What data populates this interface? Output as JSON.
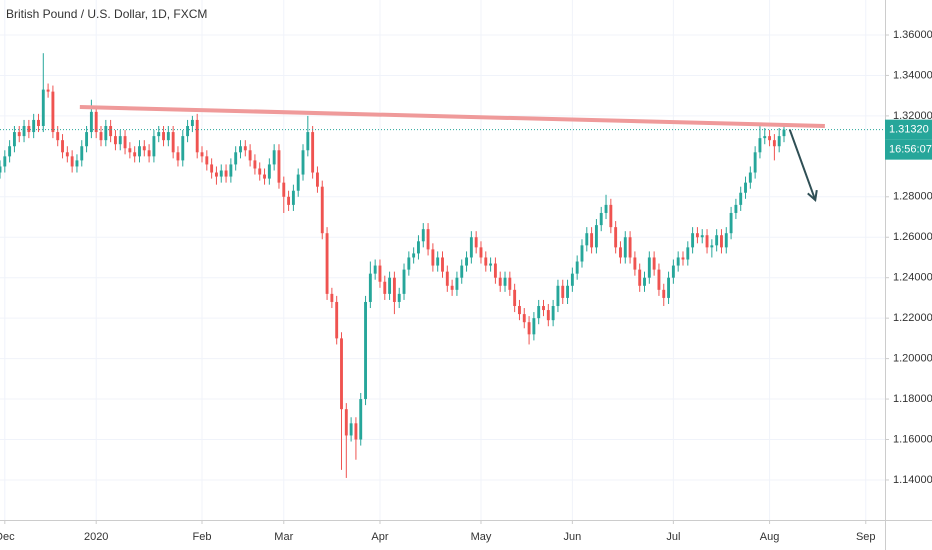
{
  "chart_data": {
    "type": "candlestick",
    "title": "British Pound / U.S. Dollar, 1D, FXCM",
    "up_color": "#26a69a",
    "down_color": "#ef5350",
    "xlim": [
      0,
      184
    ],
    "ylim": [
      1.1202,
      1.3773
    ],
    "xticks": [
      {
        "value": 1,
        "label": "Dec"
      },
      {
        "value": 20,
        "label": "2020"
      },
      {
        "value": 42,
        "label": "Feb"
      },
      {
        "value": 59,
        "label": "Mar"
      },
      {
        "value": 79,
        "label": "Apr"
      },
      {
        "value": 100,
        "label": "May"
      },
      {
        "value": 119,
        "label": "Jun"
      },
      {
        "value": 140,
        "label": "Jul"
      },
      {
        "value": 160,
        "label": "Aug"
      },
      {
        "value": 180,
        "label": "Sep"
      }
    ],
    "yticks": [
      {
        "value": 1.14,
        "label": "1.14000"
      },
      {
        "value": 1.16,
        "label": "1.16000"
      },
      {
        "value": 1.18,
        "label": "1.18000"
      },
      {
        "value": 1.2,
        "label": "1.20000"
      },
      {
        "value": 1.22,
        "label": "1.22000"
      },
      {
        "value": 1.24,
        "label": "1.24000"
      },
      {
        "value": 1.26,
        "label": "1.26000"
      },
      {
        "value": 1.28,
        "label": "1.28000"
      },
      {
        "value": 1.32,
        "label": "1.32000"
      },
      {
        "value": 1.34,
        "label": "1.34000"
      },
      {
        "value": 1.36,
        "label": "1.36000"
      }
    ],
    "last_price": {
      "value": 1.3132,
      "label": "1.31320"
    },
    "countdown": "16:56:07",
    "trendline": {
      "x": [
        16.6,
        171.5
      ],
      "y": [
        1.3244,
        1.315
      ],
      "color": "#ef9a9a"
    },
    "arrow": {
      "x": [
        164.2,
        169.5
      ],
      "y": [
        1.3132,
        1.2784
      ],
      "color": "#2f4f55"
    },
    "open": [
      1.292,
      1.295,
      1.3,
      1.305,
      1.312,
      1.31,
      1.315,
      1.312,
      1.318,
      1.315,
      1.333,
      1.332,
      1.312,
      1.308,
      1.302,
      1.3,
      1.295,
      1.298,
      1.305,
      1.312,
      1.322,
      1.312,
      1.308,
      1.315,
      1.31,
      1.306,
      1.31,
      1.304,
      1.302,
      1.3,
      1.305,
      1.303,
      1.3,
      1.31,
      1.312,
      1.308,
      1.312,
      1.302,
      1.298,
      1.31,
      1.315,
      1.318,
      1.302,
      1.3,
      1.296,
      1.292,
      1.29,
      1.293,
      1.29,
      1.296,
      1.302,
      1.305,
      1.303,
      1.298,
      1.294,
      1.291,
      1.289,
      1.296,
      1.303,
      1.287,
      1.28,
      1.276,
      1.283,
      1.291,
      1.303,
      1.312,
      1.292,
      1.285,
      1.262,
      1.232,
      1.228,
      1.21,
      1.175,
      1.162,
      1.168,
      1.16,
      1.18,
      1.228,
      1.242,
      1.246,
      1.238,
      1.232,
      1.24,
      1.228,
      1.232,
      1.244,
      1.25,
      1.252,
      1.258,
      1.264,
      1.254,
      1.246,
      1.25,
      1.243,
      1.236,
      1.234,
      1.24,
      1.246,
      1.25,
      1.26,
      1.255,
      1.25,
      1.246,
      1.247,
      1.24,
      1.236,
      1.24,
      1.234,
      1.226,
      1.222,
      1.218,
      1.212,
      1.22,
      1.226,
      1.224,
      1.219,
      1.226,
      1.236,
      1.23,
      1.236,
      1.242,
      1.248,
      1.256,
      1.262,
      1.255,
      1.266,
      1.272,
      1.276,
      1.265,
      1.255,
      1.25,
      1.26,
      1.25,
      1.244,
      1.236,
      1.24,
      1.25,
      1.244,
      1.234,
      1.23,
      1.24,
      1.246,
      1.25,
      1.249,
      1.255,
      1.262,
      1.26,
      1.261,
      1.255,
      1.256,
      1.261,
      1.255,
      1.262,
      1.272,
      1.276,
      1.282,
      1.287,
      1.292,
      1.302,
      1.309,
      1.31,
      1.308,
      1.305,
      1.31
    ],
    "high": [
      1.298,
      1.303,
      1.308,
      1.315,
      1.315,
      1.318,
      1.318,
      1.321,
      1.321,
      1.351,
      1.336,
      1.335,
      1.315,
      1.311,
      1.305,
      1.303,
      1.301,
      1.308,
      1.315,
      1.328,
      1.325,
      1.315,
      1.318,
      1.318,
      1.313,
      1.313,
      1.313,
      1.307,
      1.305,
      1.308,
      1.308,
      1.306,
      1.313,
      1.315,
      1.315,
      1.315,
      1.315,
      1.305,
      1.313,
      1.318,
      1.32,
      1.321,
      1.305,
      1.303,
      1.299,
      1.295,
      1.296,
      1.296,
      1.299,
      1.305,
      1.308,
      1.308,
      1.306,
      1.301,
      1.297,
      1.294,
      1.299,
      1.306,
      1.306,
      1.29,
      1.283,
      1.286,
      1.294,
      1.306,
      1.32,
      1.315,
      1.295,
      1.288,
      1.265,
      1.235,
      1.231,
      1.213,
      1.178,
      1.171,
      1.171,
      1.183,
      1.231,
      1.248,
      1.249,
      1.249,
      1.241,
      1.243,
      1.243,
      1.235,
      1.247,
      1.253,
      1.255,
      1.261,
      1.267,
      1.267,
      1.257,
      1.253,
      1.253,
      1.246,
      1.239,
      1.243,
      1.249,
      1.253,
      1.263,
      1.263,
      1.258,
      1.253,
      1.25,
      1.25,
      1.243,
      1.243,
      1.243,
      1.237,
      1.229,
      1.225,
      1.221,
      1.223,
      1.229,
      1.229,
      1.227,
      1.229,
      1.239,
      1.239,
      1.239,
      1.245,
      1.251,
      1.259,
      1.265,
      1.265,
      1.269,
      1.275,
      1.281,
      1.279,
      1.268,
      1.258,
      1.263,
      1.263,
      1.253,
      1.247,
      1.243,
      1.253,
      1.253,
      1.247,
      1.237,
      1.243,
      1.249,
      1.253,
      1.253,
      1.258,
      1.265,
      1.265,
      1.264,
      1.264,
      1.259,
      1.264,
      1.264,
      1.265,
      1.275,
      1.279,
      1.285,
      1.29,
      1.295,
      1.305,
      1.316,
      1.314,
      1.313,
      1.311,
      1.314,
      1.316
    ],
    "low": [
      1.289,
      1.292,
      1.297,
      1.302,
      1.307,
      1.307,
      1.309,
      1.309,
      1.312,
      1.312,
      1.329,
      1.309,
      1.305,
      1.299,
      1.297,
      1.292,
      1.292,
      1.295,
      1.302,
      1.309,
      1.309,
      1.305,
      1.305,
      1.307,
      1.303,
      1.303,
      1.301,
      1.299,
      1.297,
      1.297,
      1.3,
      1.297,
      1.297,
      1.307,
      1.305,
      1.305,
      1.299,
      1.295,
      1.295,
      1.307,
      1.312,
      1.299,
      1.297,
      1.293,
      1.289,
      1.286,
      1.287,
      1.287,
      1.287,
      1.293,
      1.299,
      1.3,
      1.295,
      1.291,
      1.288,
      1.286,
      1.286,
      1.293,
      1.284,
      1.272,
      1.273,
      1.273,
      1.28,
      1.288,
      1.3,
      1.289,
      1.282,
      1.259,
      1.229,
      1.225,
      1.207,
      1.145,
      1.141,
      1.159,
      1.15,
      1.157,
      1.177,
      1.225,
      1.239,
      1.235,
      1.229,
      1.229,
      1.222,
      1.225,
      1.229,
      1.241,
      1.247,
      1.249,
      1.255,
      1.251,
      1.243,
      1.243,
      1.24,
      1.233,
      1.231,
      1.231,
      1.237,
      1.243,
      1.247,
      1.252,
      1.247,
      1.243,
      1.243,
      1.237,
      1.233,
      1.233,
      1.231,
      1.223,
      1.219,
      1.215,
      1.207,
      1.209,
      1.217,
      1.221,
      1.216,
      1.216,
      1.223,
      1.227,
      1.227,
      1.233,
      1.239,
      1.245,
      1.253,
      1.252,
      1.252,
      1.263,
      1.269,
      1.262,
      1.252,
      1.247,
      1.247,
      1.247,
      1.241,
      1.233,
      1.233,
      1.237,
      1.241,
      1.231,
      1.226,
      1.227,
      1.237,
      1.243,
      1.246,
      1.246,
      1.252,
      1.257,
      1.257,
      1.252,
      1.25,
      1.253,
      1.252,
      1.252,
      1.259,
      1.269,
      1.273,
      1.279,
      1.284,
      1.289,
      1.299,
      1.306,
      1.305,
      1.298,
      1.302,
      1.307
    ],
    "close": [
      1.295,
      1.3,
      1.305,
      1.312,
      1.31,
      1.315,
      1.312,
      1.318,
      1.315,
      1.333,
      1.332,
      1.312,
      1.308,
      1.302,
      1.3,
      1.295,
      1.298,
      1.305,
      1.312,
      1.322,
      1.312,
      1.308,
      1.315,
      1.31,
      1.306,
      1.31,
      1.304,
      1.302,
      1.3,
      1.305,
      1.303,
      1.3,
      1.31,
      1.312,
      1.308,
      1.312,
      1.302,
      1.298,
      1.31,
      1.315,
      1.318,
      1.302,
      1.3,
      1.296,
      1.292,
      1.29,
      1.293,
      1.29,
      1.296,
      1.302,
      1.305,
      1.303,
      1.298,
      1.294,
      1.291,
      1.289,
      1.296,
      1.303,
      1.287,
      1.28,
      1.276,
      1.283,
      1.291,
      1.303,
      1.312,
      1.292,
      1.285,
      1.262,
      1.232,
      1.228,
      1.21,
      1.175,
      1.162,
      1.168,
      1.16,
      1.18,
      1.228,
      1.242,
      1.246,
      1.238,
      1.232,
      1.24,
      1.228,
      1.232,
      1.244,
      1.25,
      1.252,
      1.258,
      1.264,
      1.254,
      1.246,
      1.25,
      1.243,
      1.236,
      1.234,
      1.24,
      1.246,
      1.25,
      1.26,
      1.255,
      1.25,
      1.246,
      1.247,
      1.24,
      1.236,
      1.24,
      1.234,
      1.226,
      1.222,
      1.218,
      1.212,
      1.22,
      1.226,
      1.224,
      1.219,
      1.226,
      1.236,
      1.23,
      1.236,
      1.242,
      1.248,
      1.256,
      1.262,
      1.255,
      1.266,
      1.272,
      1.276,
      1.265,
      1.255,
      1.25,
      1.26,
      1.25,
      1.244,
      1.236,
      1.24,
      1.25,
      1.244,
      1.234,
      1.23,
      1.24,
      1.246,
      1.25,
      1.249,
      1.255,
      1.262,
      1.26,
      1.261,
      1.255,
      1.256,
      1.261,
      1.255,
      1.262,
      1.272,
      1.276,
      1.282,
      1.287,
      1.292,
      1.302,
      1.309,
      1.31,
      1.308,
      1.305,
      1.31,
      1.3132
    ]
  }
}
